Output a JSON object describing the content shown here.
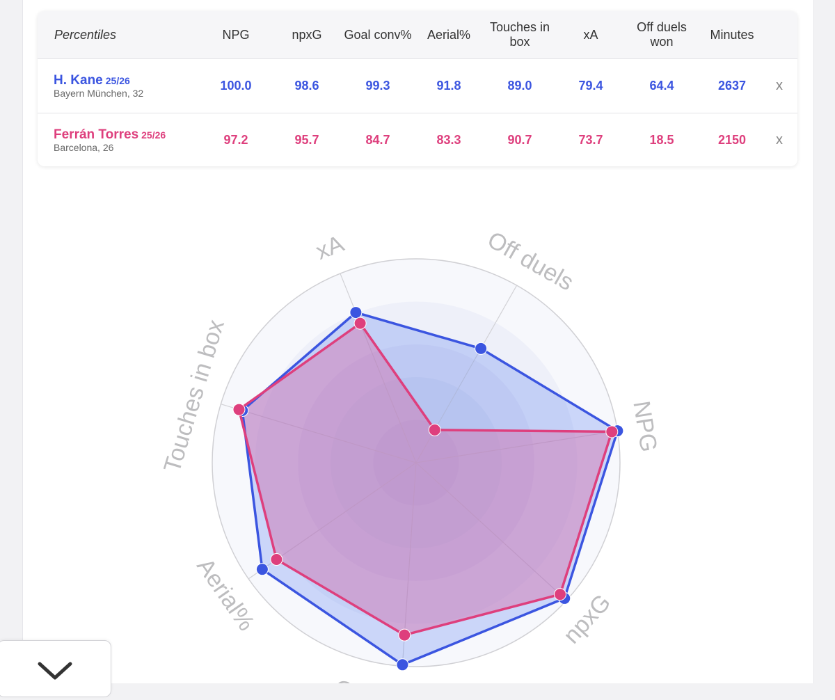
{
  "table": {
    "header_first": "Percentiles",
    "columns": [
      {
        "key": "npg",
        "label": "NPG"
      },
      {
        "key": "npxg",
        "label": "npxG"
      },
      {
        "key": "goal_conv",
        "label": "Goal conv%"
      },
      {
        "key": "aerial",
        "label": "Aerial%"
      },
      {
        "key": "touches",
        "label": "Touches in box"
      },
      {
        "key": "xa",
        "label": "xA"
      },
      {
        "key": "off_duels",
        "label": "Off duels won"
      },
      {
        "key": "minutes",
        "label": "Minutes"
      }
    ],
    "players": [
      {
        "name": "H. Kane",
        "season": "25/26",
        "team_age": "Bayern München, 32",
        "color": "#3b55e0",
        "values": [
          "100.0",
          "98.6",
          "99.3",
          "91.8",
          "89.0",
          "79.4",
          "64.4",
          "2637"
        ],
        "remove_label": "x"
      },
      {
        "name": "Ferrán Torres",
        "season": "25/26",
        "team_age": "Barcelona, 26",
        "color": "#de3f7d",
        "values": [
          "97.2",
          "95.7",
          "84.7",
          "83.3",
          "90.7",
          "73.7",
          "18.5",
          "2150"
        ],
        "remove_label": "x"
      }
    ]
  },
  "chart_data": {
    "type": "radar",
    "axes": [
      "NPG",
      "npxG",
      "Conversions",
      "Aerial%",
      "Touches in box",
      "xA",
      "Off duels"
    ],
    "range": [
      0,
      100
    ],
    "series": [
      {
        "name": "H. Kane",
        "color": "#3b55e0",
        "fill": "#5b7ef0",
        "values": [
          100.0,
          98.6,
          99.3,
          91.8,
          89.0,
          79.4,
          64.4
        ]
      },
      {
        "name": "Ferrán Torres",
        "color": "#de3f7d",
        "fill": "#d56aa6",
        "values": [
          97.2,
          95.7,
          84.7,
          83.3,
          90.7,
          73.7,
          18.5
        ]
      }
    ]
  },
  "ui": {
    "collapse_icon": "chevron-down-icon"
  }
}
